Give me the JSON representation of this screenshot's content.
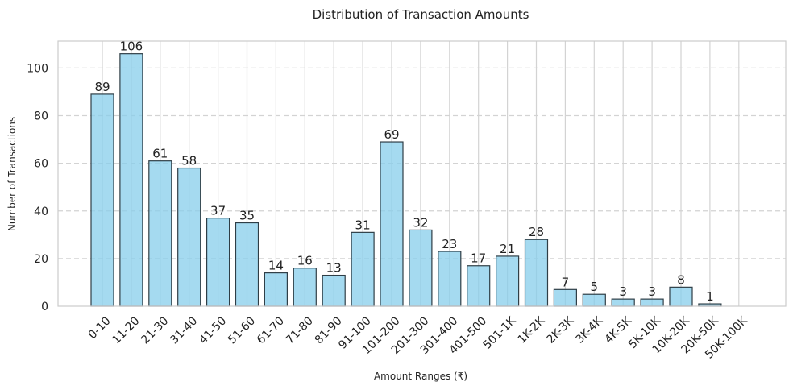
{
  "chart_data": {
    "type": "bar",
    "title": "Distribution of Transaction Amounts",
    "xlabel": "Amount Ranges (₹)",
    "ylabel": "Number of Transactions",
    "categories": [
      "0-10",
      "11-20",
      "21-30",
      "31-40",
      "41-50",
      "51-60",
      "61-70",
      "71-80",
      "81-90",
      "91-100",
      "101-200",
      "201-300",
      "301-400",
      "401-500",
      "501-1K",
      "1K-2K",
      "2K-3K",
      "3K-4K",
      "4K-5K",
      "5K-10K",
      "10K-20K",
      "20K-50K",
      "50K-100K"
    ],
    "values": [
      89,
      106,
      61,
      58,
      37,
      35,
      14,
      16,
      13,
      31,
      69,
      32,
      23,
      17,
      21,
      28,
      7,
      5,
      3,
      3,
      8,
      1,
      0
    ],
    "data_labels": [
      "89",
      "106",
      "61",
      "58",
      "37",
      "35",
      "14",
      "16",
      "13",
      "31",
      "69",
      "32",
      "23",
      "17",
      "21",
      "28",
      "7",
      "5",
      "3",
      "3",
      "8",
      "1",
      ""
    ],
    "yticks": [
      0,
      20,
      40,
      60,
      80,
      100
    ],
    "ylim": [
      0,
      111.3
    ],
    "grid": true,
    "colors": {
      "bar_fill": "#87ceeb",
      "bar_stroke": "#2f3e46",
      "grid": "#d3d3d3",
      "axes": "#cccccc"
    }
  }
}
